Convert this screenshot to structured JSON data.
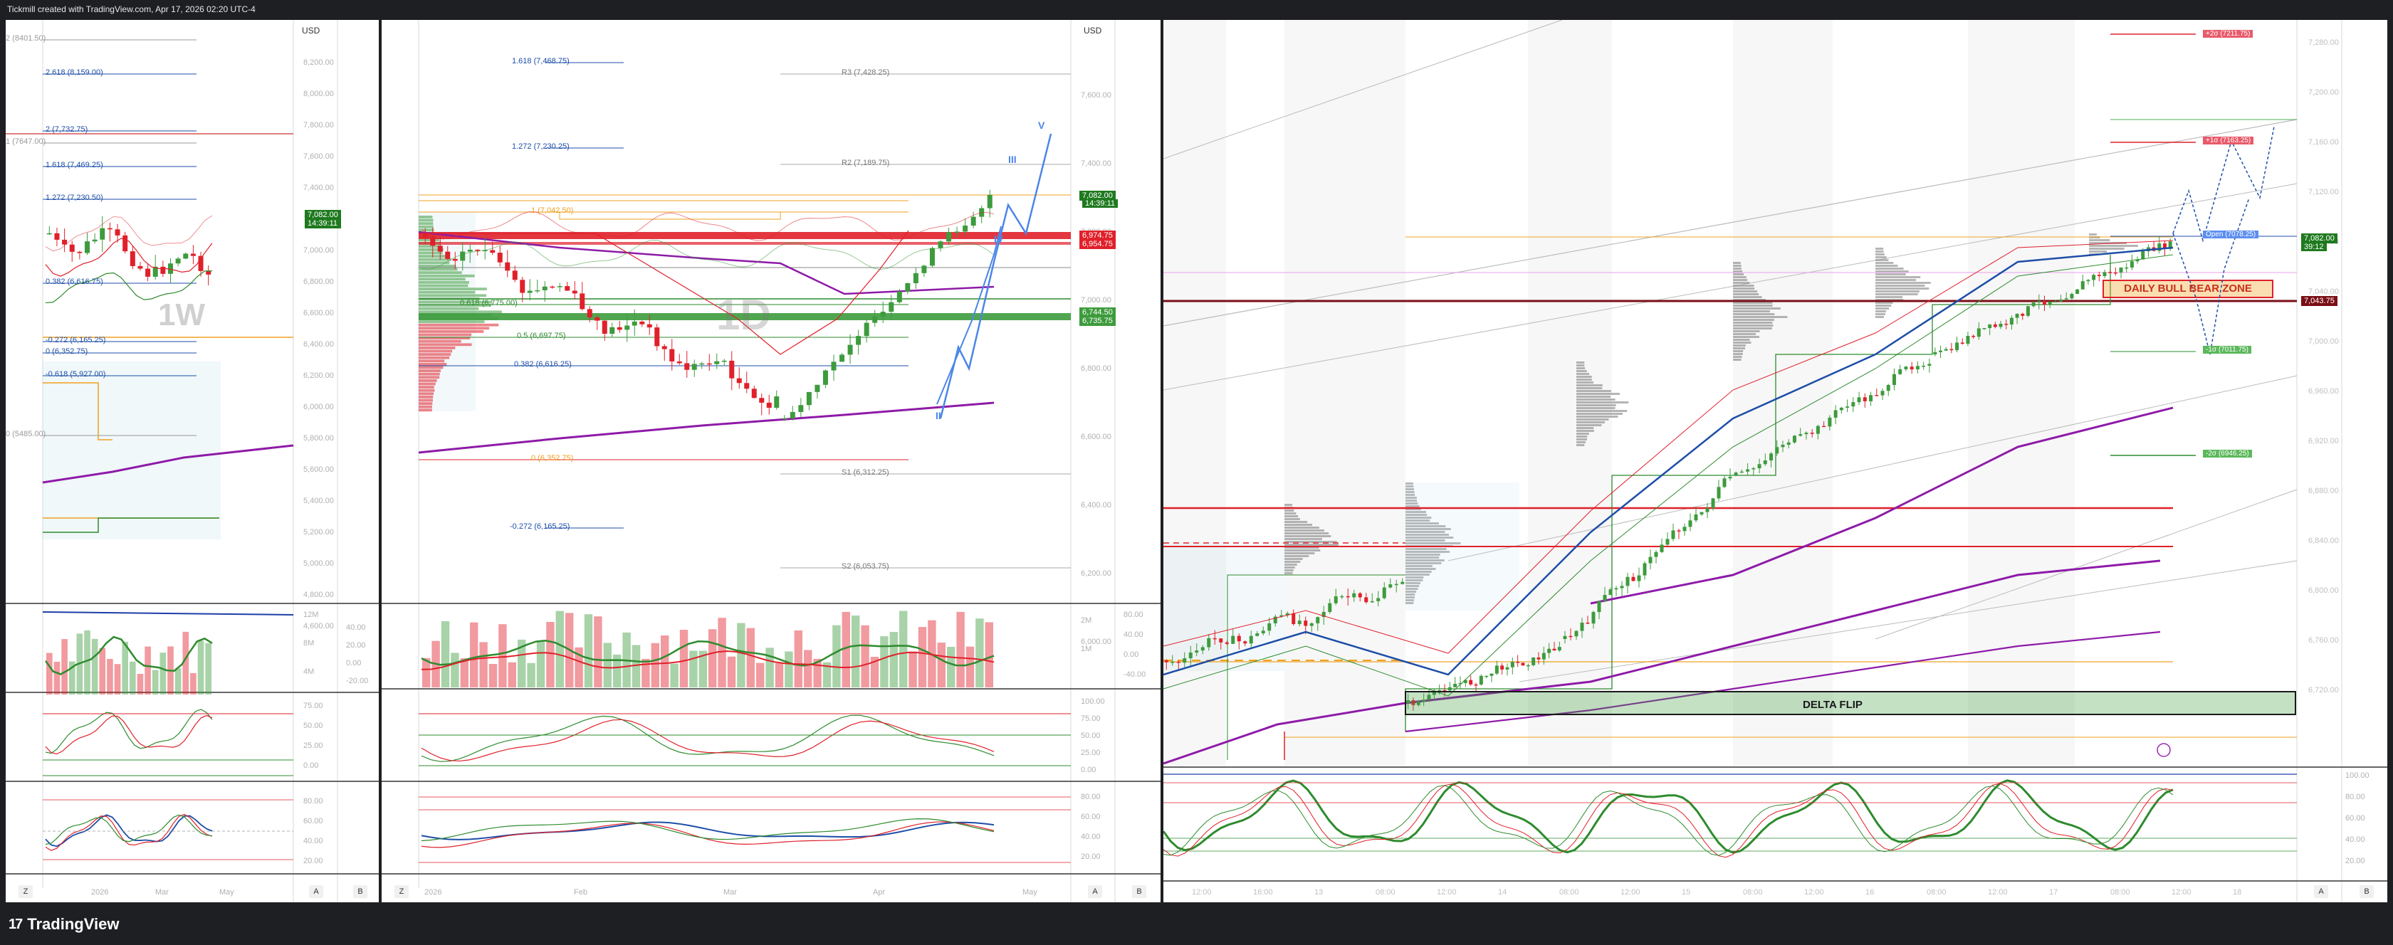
{
  "topbar": {
    "caption": "Tickmill created with TradingView.com, Apr 17, 2026 02:20 UTC-4"
  },
  "brand": {
    "name": "TradingView",
    "logo": "17"
  },
  "colors": {
    "up": "#3d9b3d",
    "down": "#e0202a",
    "blue": "#4a86e8",
    "purple": "#8e1aa8",
    "orange": "#f0a020",
    "frame": "#1e1f22"
  },
  "pane1": {
    "currency": "USD",
    "fib": [
      {
        "text": "2 (8401.50)"
      },
      {
        "text": "2.618 (8,159.00)"
      },
      {
        "text": "2 (7,732.75)"
      },
      {
        "text": "1 (7647.00)"
      },
      {
        "text": "1.618 (7,469.25)"
      },
      {
        "text": "1.272 (7,230.50)"
      },
      {
        "text": "0.382 (6,616.75)"
      },
      {
        "text": "0 (6,352.75)"
      },
      {
        "text": "-0.272 (6,165.25)"
      },
      {
        "text": "-0.618 (5,927.00)"
      },
      {
        "text": "0 (5485.00)"
      }
    ],
    "price_ticks": [
      "8,200.00",
      "8,000.00",
      "7,800.00",
      "7,600.00",
      "7,400.00",
      "7,200.00",
      "7,000.00",
      "6,800.00",
      "6,600.00",
      "6,400.00",
      "6,200.00",
      "6,000.00",
      "5,800.00",
      "5,600.00",
      "5,400.00",
      "5,200.00",
      "5,000.00",
      "4,800.00",
      "4,600.00"
    ],
    "price_tag": {
      "value": "7,082.00",
      "time": "14:39:11"
    },
    "watermark": "1W",
    "volume_ticks": [
      "12M",
      "8M",
      "4M"
    ],
    "stoch_ticks": [
      "75.00",
      "50.00",
      "25.00",
      "0.00"
    ],
    "rsi_ticks": [
      "80.00",
      "60.00",
      "40.00",
      "20.00"
    ],
    "macd_ticks": [
      "40.00",
      "20.00",
      "0.00",
      "-20.00"
    ],
    "time_ticks": [
      "2026",
      "Mar",
      "May"
    ],
    "buttons": {
      "z": "Z",
      "a": "A",
      "b": "B"
    }
  },
  "pane2": {
    "currency": "USD",
    "fib": [
      {
        "text": "1.618 (7,468.75)"
      },
      {
        "text": "1.272 (7,230.25)"
      },
      {
        "text": "1 (7,042.50)"
      },
      {
        "text": "0.618 (6,775.00)"
      },
      {
        "text": "0.5 (6,697.75)"
      },
      {
        "text": "0.382 (6,616.25)"
      },
      {
        "text": "0 (6,352.75)"
      },
      {
        "text": "-0.272 (6,165.25)"
      }
    ],
    "pivots": [
      {
        "text": "R3 (7,428.25)"
      },
      {
        "text": "R2 (7,189.75)"
      },
      {
        "text": "S1 (6,312.25)"
      },
      {
        "text": "S2 (6,053.75)"
      }
    ],
    "price_ticks": [
      "7,600.00",
      "7,400.00",
      "7,200.00",
      "7,000.00",
      "6,800.00",
      "6,600.00",
      "6,400.00",
      "6,200.00",
      "6,000.00"
    ],
    "tags": [
      {
        "text": "7,082.00",
        "sub": "14:39:11",
        "color": "#1f7a1f"
      },
      {
        "text": "6,974.75",
        "color": "#e0202a"
      },
      {
        "text": "6,954.75",
        "color": "#e0202a"
      },
      {
        "text": "6,744.50",
        "color": "#3d9b3d"
      },
      {
        "text": "6,735.75",
        "color": "#3d9b3d"
      }
    ],
    "watermark": "1D",
    "waves": [
      "V",
      "III",
      "IV",
      "II"
    ],
    "volume_ticks": [
      "2M",
      "1M"
    ],
    "stoch_ticks": [
      "100.00",
      "75.00",
      "50.00",
      "25.00",
      "0.00"
    ],
    "rsi_ticks": [
      "80.00",
      "60.00",
      "40.00",
      "20.00"
    ],
    "macd_ticks": [
      "80.00",
      "40.00",
      "0.00",
      "-40.00"
    ],
    "time_ticks": [
      "2026",
      "Feb",
      "Mar",
      "Apr",
      "May"
    ],
    "buttons": {
      "z": "Z",
      "a": "A",
      "b": "B"
    }
  },
  "pane3": {
    "price_ticks": [
      "7,280.00",
      "7,200.00",
      "7,160.00",
      "7,120.00",
      "7,080.00",
      "7,040.00",
      "7,000.00",
      "6,960.00",
      "6,920.00",
      "6,880.00",
      "6,840.00",
      "6,800.00",
      "6,760.00",
      "6,720.00"
    ],
    "tags": [
      {
        "text": "+2σ (7211.75)",
        "color": "#e85a6a"
      },
      {
        "text": "+1σ (7163.25)",
        "color": "#e85a6a"
      },
      {
        "text": "Open (7078.25)",
        "color": "#5b8ef0"
      },
      {
        "text": "-1σ (7011.75)",
        "color": "#5bb85b"
      },
      {
        "text": "-2σ (6946.25)",
        "color": "#5bb85b"
      }
    ],
    "right_tags": [
      {
        "text": "7,082.00",
        "sub": "39:12",
        "color": "#1f7a1f"
      },
      {
        "text": "7,043.75",
        "color": "#7a0f16"
      }
    ],
    "zones": {
      "bull_bear": "DAILY BULL BEAR ZONE",
      "delta": "DELTA FLIP"
    },
    "osc_ticks": [
      "100.00",
      "80.00",
      "60.00",
      "40.00",
      "20.00"
    ],
    "time_ticks": [
      "12:00",
      "16:00",
      "13",
      "08:00",
      "12:00",
      "14",
      "08:00",
      "12:00",
      "15",
      "08:00",
      "12:00",
      "16",
      "08:00",
      "12:00",
      "17",
      "08:00",
      "12:00",
      "18"
    ],
    "buttons": {
      "a": "A",
      "b": "B"
    }
  }
}
